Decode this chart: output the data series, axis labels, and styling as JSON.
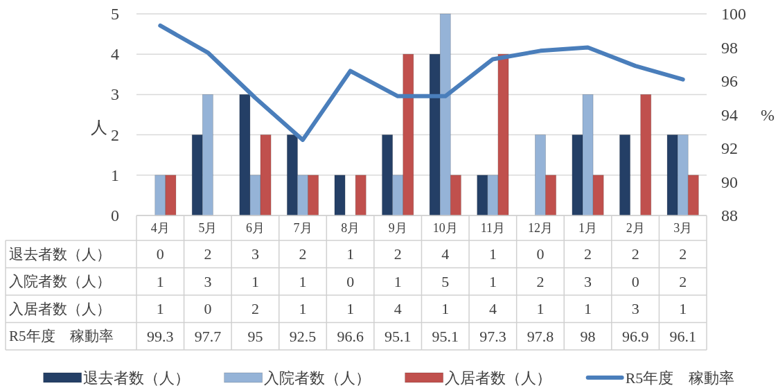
{
  "chart_data": {
    "type": "bar",
    "categories": [
      "4月",
      "5月",
      "6月",
      "7月",
      "8月",
      "9月",
      "10月",
      "11月",
      "12月",
      "1月",
      "2月",
      "3月"
    ],
    "ylabel": "人",
    "y2label": "%",
    "ylim": [
      0,
      5
    ],
    "yticks": [
      0,
      1,
      2,
      3,
      4,
      5
    ],
    "y2lim": [
      88,
      100
    ],
    "y2ticks": [
      88,
      90,
      92,
      94,
      96,
      98,
      100
    ],
    "grid": "y",
    "legend": "bottom",
    "data_labels": true,
    "series": [
      {
        "name": "退去者数（人）",
        "color": "#243f66",
        "values": [
          0,
          2,
          3,
          2,
          1,
          2,
          4,
          1,
          0,
          2,
          2,
          2
        ]
      },
      {
        "name": "入院者数（人）",
        "color": "#95b3d7",
        "values": [
          1,
          3,
          1,
          1,
          0,
          1,
          5,
          1,
          2,
          3,
          0,
          2
        ]
      },
      {
        "name": "入居者数（人）",
        "color": "#c0504d",
        "values": [
          1,
          0,
          2,
          1,
          1,
          4,
          1,
          4,
          1,
          1,
          3,
          1
        ]
      },
      {
        "name": "R5年度　稼動率",
        "type": "line",
        "axis": "y2",
        "color": "#4a7ebb",
        "values": [
          99.3,
          97.7,
          95,
          92.5,
          96.6,
          95.1,
          95.1,
          97.3,
          97.8,
          98,
          96.9,
          96.1
        ]
      }
    ]
  }
}
